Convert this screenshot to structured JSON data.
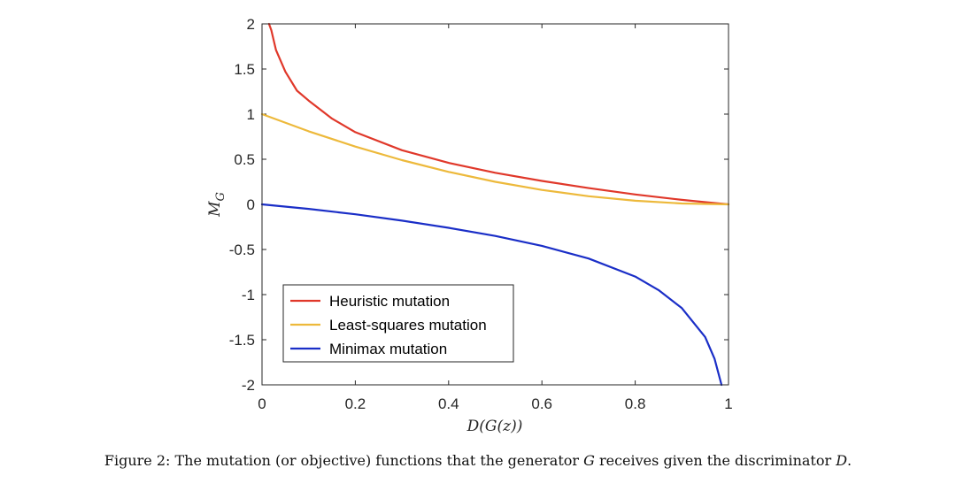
{
  "chart_data": {
    "type": "line",
    "xlabel": "D(G(z))",
    "ylabel": "M_G",
    "xlim": [
      0,
      1
    ],
    "ylim": [
      -2,
      2
    ],
    "xticks": [
      0,
      0.2,
      0.4,
      0.6,
      0.8,
      1
    ],
    "xtick_labels": [
      "0",
      "0.2",
      "0.4",
      "0.6",
      "0.8",
      "1"
    ],
    "yticks": [
      -2,
      -1.5,
      -1,
      -0.5,
      0,
      0.5,
      1,
      1.5,
      2
    ],
    "ytick_labels": [
      "-2",
      "-1.5",
      "-1",
      "-0.5",
      "0",
      "0.5",
      "1",
      "1.5",
      "2"
    ],
    "legend_position": "lower-left",
    "series": [
      {
        "name": "Heuristic mutation",
        "color": "#e0382a",
        "x": [
          0.015,
          0.02,
          0.03,
          0.05,
          0.075,
          0.1,
          0.15,
          0.2,
          0.3,
          0.4,
          0.5,
          0.6,
          0.7,
          0.8,
          0.9,
          0.95,
          1.0
        ],
        "y": [
          2.0,
          1.93,
          1.71,
          1.47,
          1.26,
          1.15,
          0.95,
          0.8,
          0.6,
          0.46,
          0.35,
          0.26,
          0.18,
          0.11,
          0.05,
          0.025,
          0.0
        ]
      },
      {
        "name": "Least-squares mutation",
        "color": "#edb93b",
        "x": [
          0,
          0.1,
          0.2,
          0.3,
          0.4,
          0.5,
          0.6,
          0.7,
          0.8,
          0.9,
          1.0
        ],
        "y": [
          1.0,
          0.81,
          0.64,
          0.49,
          0.36,
          0.25,
          0.16,
          0.09,
          0.04,
          0.01,
          0.0
        ]
      },
      {
        "name": "Minimax mutation",
        "color": "#1a2ec7",
        "x": [
          0,
          0.1,
          0.2,
          0.3,
          0.4,
          0.5,
          0.6,
          0.7,
          0.8,
          0.85,
          0.9,
          0.95,
          0.97,
          0.985
        ],
        "y": [
          0.0,
          -0.05,
          -0.11,
          -0.18,
          -0.26,
          -0.35,
          -0.46,
          -0.6,
          -0.8,
          -0.95,
          -1.15,
          -1.47,
          -1.71,
          -2.0
        ]
      }
    ]
  },
  "caption": {
    "prefix": "Figure 2: The mutation (or objective) functions that the generator ",
    "var1": "G",
    "middle": " receives given the discriminator ",
    "var2": "D",
    "suffix": "."
  }
}
